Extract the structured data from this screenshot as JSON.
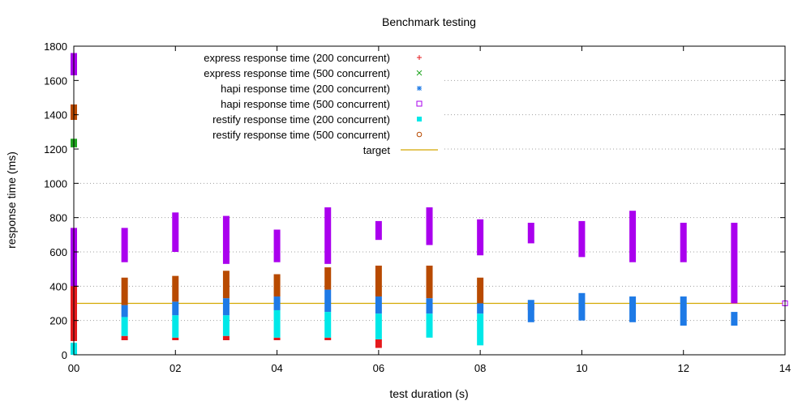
{
  "chart_data": {
    "type": "scatter",
    "title": "Benchmark testing",
    "xlabel": "test duration (s)",
    "ylabel": "response time (ms)",
    "xlim": [
      0,
      14
    ],
    "ylim": [
      0,
      1800
    ],
    "x_ticks": [
      0,
      2,
      4,
      6,
      8,
      10,
      12,
      14
    ],
    "x_tick_labels": [
      "00",
      "02",
      "04",
      "06",
      "08",
      "10",
      "12",
      "14"
    ],
    "y_ticks": [
      0,
      200,
      400,
      600,
      800,
      1000,
      1200,
      1400,
      1600,
      1800
    ],
    "y_tick_labels": [
      "0",
      "200",
      "400",
      "600",
      "800",
      "1000",
      "1200",
      "1400",
      "1600",
      "1800"
    ],
    "grid": true,
    "legend_position": "top-left",
    "series": [
      {
        "name": "express response time (200 concurrent)",
        "color": "#e41a1c",
        "marker": "plus",
        "ranges": [
          {
            "x": 0,
            "min": 80,
            "max": 410
          },
          {
            "x": 1,
            "min": 85,
            "max": 110
          },
          {
            "x": 2,
            "min": 85,
            "max": 100
          },
          {
            "x": 3,
            "min": 85,
            "max": 110
          },
          {
            "x": 4,
            "min": 85,
            "max": 100
          },
          {
            "x": 5,
            "min": 85,
            "max": 100
          },
          {
            "x": 6,
            "min": 40,
            "max": 90
          },
          {
            "x": 9,
            "min": 260,
            "max": 300
          }
        ]
      },
      {
        "name": "express response time (500 concurrent)",
        "color": "#1ea31e",
        "marker": "cross",
        "ranges": [
          {
            "x": 0,
            "min": 1210,
            "max": 1260
          }
        ]
      },
      {
        "name": "hapi response time (200 concurrent)",
        "color": "#1e7ae6",
        "marker": "star",
        "ranges": [
          {
            "x": 1,
            "min": 220,
            "max": 290
          },
          {
            "x": 2,
            "min": 230,
            "max": 310
          },
          {
            "x": 3,
            "min": 230,
            "max": 330
          },
          {
            "x": 4,
            "min": 260,
            "max": 340
          },
          {
            "x": 5,
            "min": 250,
            "max": 380
          },
          {
            "x": 6,
            "min": 240,
            "max": 340
          },
          {
            "x": 7,
            "min": 240,
            "max": 330
          },
          {
            "x": 8,
            "min": 240,
            "max": 300
          },
          {
            "x": 9,
            "min": 190,
            "max": 320
          },
          {
            "x": 10,
            "min": 200,
            "max": 360
          },
          {
            "x": 11,
            "min": 190,
            "max": 340
          },
          {
            "x": 12,
            "min": 170,
            "max": 340
          },
          {
            "x": 13,
            "min": 170,
            "max": 250
          }
        ]
      },
      {
        "name": "hapi response time (500 concurrent)",
        "color": "#aa00ee",
        "marker": "square",
        "ranges": [
          {
            "x": 0,
            "min": 400,
            "max": 740
          },
          {
            "x": 0,
            "min": 1630,
            "max": 1760
          },
          {
            "x": 1,
            "min": 540,
            "max": 740
          },
          {
            "x": 2,
            "min": 600,
            "max": 830
          },
          {
            "x": 3,
            "min": 530,
            "max": 810
          },
          {
            "x": 4,
            "min": 540,
            "max": 730
          },
          {
            "x": 5,
            "min": 530,
            "max": 860
          },
          {
            "x": 6,
            "min": 670,
            "max": 780
          },
          {
            "x": 7,
            "min": 640,
            "max": 860
          },
          {
            "x": 8,
            "min": 580,
            "max": 790
          },
          {
            "x": 9,
            "min": 650,
            "max": 770
          },
          {
            "x": 10,
            "min": 570,
            "max": 780
          },
          {
            "x": 11,
            "min": 540,
            "max": 840
          },
          {
            "x": 12,
            "min": 540,
            "max": 770
          },
          {
            "x": 13,
            "min": 300,
            "max": 770
          }
        ],
        "points": [
          {
            "x": 14,
            "y": 300
          }
        ]
      },
      {
        "name": "restify response time (200 concurrent)",
        "color": "#00e8e8",
        "marker": "filled-square",
        "ranges": [
          {
            "x": 0,
            "min": 0,
            "max": 70
          },
          {
            "x": 1,
            "min": 110,
            "max": 220
          },
          {
            "x": 2,
            "min": 100,
            "max": 230
          },
          {
            "x": 3,
            "min": 110,
            "max": 230
          },
          {
            "x": 4,
            "min": 100,
            "max": 260
          },
          {
            "x": 5,
            "min": 100,
            "max": 250
          },
          {
            "x": 6,
            "min": 90,
            "max": 240
          },
          {
            "x": 7,
            "min": 100,
            "max": 240
          },
          {
            "x": 8,
            "min": 55,
            "max": 240
          }
        ]
      },
      {
        "name": "restify response time (500 concurrent)",
        "color": "#b84a00",
        "marker": "circle",
        "ranges": [
          {
            "x": 0,
            "min": 1370,
            "max": 1460
          },
          {
            "x": 1,
            "min": 290,
            "max": 450
          },
          {
            "x": 2,
            "min": 310,
            "max": 460
          },
          {
            "x": 3,
            "min": 330,
            "max": 490
          },
          {
            "x": 4,
            "min": 340,
            "max": 470
          },
          {
            "x": 5,
            "min": 380,
            "max": 510
          },
          {
            "x": 6,
            "min": 340,
            "max": 520
          },
          {
            "x": 7,
            "min": 330,
            "max": 520
          },
          {
            "x": 8,
            "min": 300,
            "max": 450
          }
        ]
      }
    ],
    "target": {
      "name": "target",
      "y": 300,
      "color": "#d4a800"
    }
  }
}
